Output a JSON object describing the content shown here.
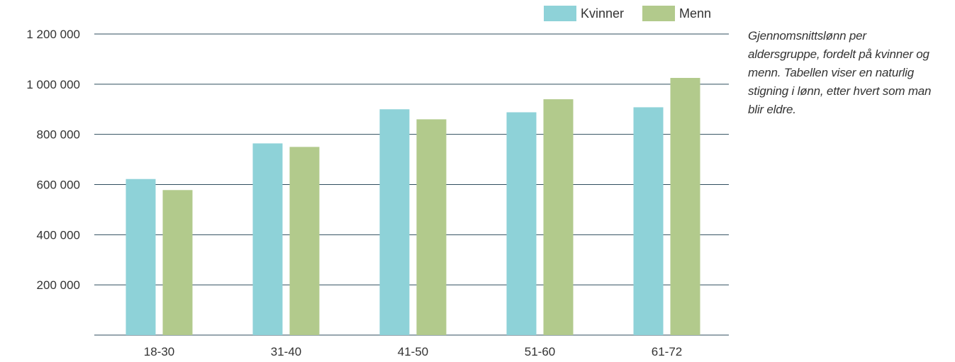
{
  "caption": "Gjennomsnittslønn per aldersgruppe, fordelt på kvinner og menn. Tabellen viser en naturlig stigning i lønn, etter hvert som man blir eldre.",
  "chart_data": {
    "type": "bar",
    "categories": [
      "18-30",
      "31-40",
      "41-50",
      "51-60",
      "61-72"
    ],
    "series": [
      {
        "name": "Kvinner",
        "values": [
          622000,
          764000,
          900000,
          888000,
          908000
        ],
        "color": "#8ed2d8"
      },
      {
        "name": "Menn",
        "values": [
          578000,
          750000,
          860000,
          940000,
          1025000
        ],
        "color": "#b2ca8c"
      }
    ],
    "yticks": [
      200000,
      400000,
      600000,
      800000,
      1000000,
      1200000
    ],
    "ytick_labels": [
      "200 000",
      "400 000",
      "600 000",
      "800 000",
      "1 000 000",
      "1 200 000"
    ],
    "ylim": [
      0,
      1200000
    ],
    "grid": true,
    "legend_position": "top-right",
    "gridline_color": "#2f4e5e"
  }
}
